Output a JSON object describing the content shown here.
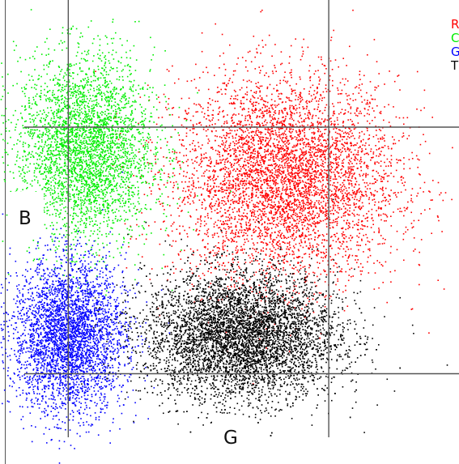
{
  "chart_data": {
    "type": "scatter",
    "title": "",
    "xlabel": "G",
    "ylabel": "B",
    "xlim": [
      0,
      100
    ],
    "ylim": [
      0,
      100
    ],
    "grid": true,
    "legend_position": "top-right",
    "threshold_lines": {
      "x": [
        13,
        78
      ],
      "y": [
        14,
        72
      ]
    },
    "series": [
      {
        "name": "R",
        "color": "#ff0000",
        "center": [
          67,
          60
        ],
        "spread": [
          14,
          12
        ],
        "count": 5200
      },
      {
        "name": "C",
        "color": "#00ee00",
        "center": [
          17,
          67
        ],
        "spread": [
          8.5,
          11
        ],
        "count": 3600
      },
      {
        "name": "G",
        "color": "#0000ff",
        "center": [
          13,
          23
        ],
        "spread": [
          7,
          9
        ],
        "count": 3600
      },
      {
        "name": "T",
        "color": "#000000",
        "center": [
          56,
          23
        ],
        "spread": [
          12,
          7.5
        ],
        "count": 6200
      }
    ]
  }
}
